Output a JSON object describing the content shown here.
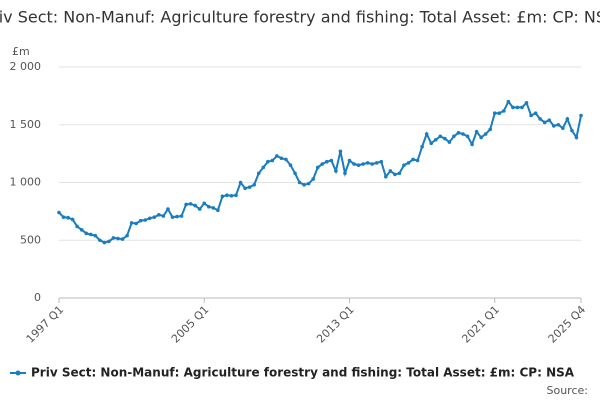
{
  "chart_data": {
    "type": "line",
    "title": "Priv Sect: Non-Manuf: Agriculture forestry and fishing: Total Asset: £m: CP: NSA",
    "y_unit": "£m",
    "source": "Source:",
    "categories": [
      "1997 Q1",
      null,
      null,
      null,
      null,
      null,
      null,
      null,
      null,
      null,
      null,
      null,
      null,
      null,
      null,
      null,
      null,
      null,
      null,
      null,
      null,
      null,
      null,
      null,
      null,
      null,
      null,
      null,
      null,
      null,
      null,
      null,
      "2005 Q1",
      null,
      null,
      null,
      null,
      null,
      null,
      null,
      null,
      null,
      null,
      null,
      null,
      null,
      null,
      null,
      null,
      null,
      null,
      null,
      null,
      null,
      null,
      null,
      null,
      null,
      null,
      null,
      null,
      null,
      null,
      null,
      "2013 Q1",
      null,
      null,
      null,
      null,
      null,
      null,
      null,
      null,
      null,
      null,
      null,
      null,
      null,
      null,
      null,
      null,
      null,
      null,
      null,
      null,
      null,
      null,
      null,
      null,
      null,
      null,
      null,
      null,
      null,
      null,
      null,
      "2021 Q1",
      null,
      null,
      null,
      null,
      null,
      null,
      null,
      null,
      null,
      null,
      null,
      null,
      null,
      null,
      null,
      null,
      null,
      null,
      "2025 Q4"
    ],
    "series": [
      {
        "name": "Priv Sect: Non-Manuf: Agriculture forestry and fishing: Total Asset: £m: CP: NSA",
        "color": "#1a7dbf",
        "values": [
          740,
          700,
          695,
          680,
          620,
          590,
          560,
          550,
          540,
          500,
          480,
          490,
          520,
          515,
          510,
          540,
          650,
          645,
          670,
          675,
          690,
          700,
          720,
          710,
          770,
          700,
          705,
          710,
          810,
          815,
          800,
          770,
          820,
          790,
          780,
          760,
          880,
          890,
          885,
          890,
          1000,
          950,
          960,
          980,
          1080,
          1130,
          1180,
          1190,
          1230,
          1210,
          1200,
          1150,
          1080,
          1000,
          980,
          990,
          1030,
          1130,
          1160,
          1180,
          1190,
          1100,
          1270,
          1080,
          1190,
          1160,
          1150,
          1160,
          1170,
          1160,
          1170,
          1180,
          1050,
          1100,
          1070,
          1080,
          1150,
          1170,
          1200,
          1190,
          1310,
          1420,
          1340,
          1370,
          1400,
          1380,
          1350,
          1400,
          1430,
          1420,
          1400,
          1330,
          1440,
          1390,
          1420,
          1460,
          1600,
          1600,
          1620,
          1700,
          1650,
          1650,
          1650,
          1690,
          1580,
          1600,
          1550,
          1520,
          1540,
          1490,
          1500,
          1470,
          1550,
          1450,
          1390,
          1580
        ]
      }
    ],
    "ylim": [
      0,
      2000
    ],
    "yticks": [
      0,
      500,
      {
        "value": 1000,
        "label": "1 000"
      },
      {
        "value": 1500,
        "label": "1 500"
      },
      {
        "value": 2000,
        "label": "2 000"
      }
    ],
    "grid": true
  }
}
